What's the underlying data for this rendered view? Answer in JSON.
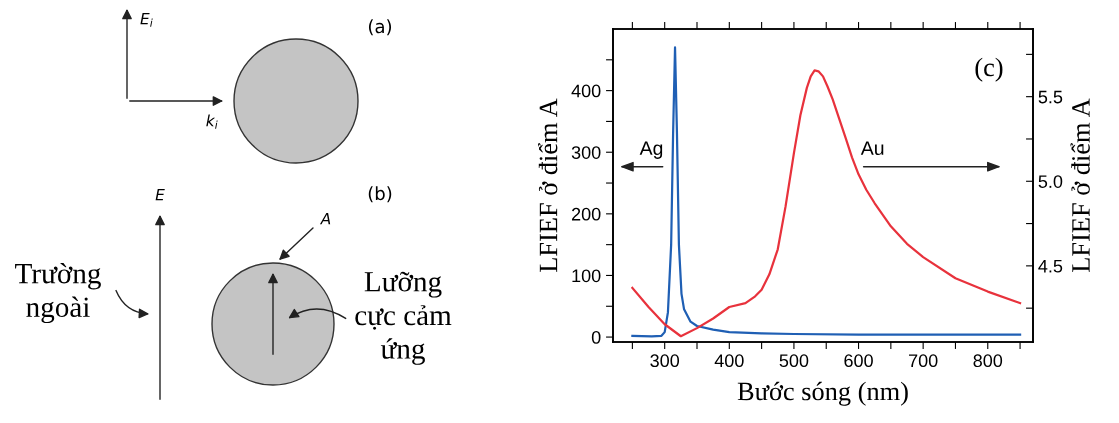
{
  "chart_data": [
    {
      "type": "other",
      "annotations": [
        "E$_{i}$",
        "k$_{i}$",
        "(a)",
        "(b)",
        "E",
        "A",
        "Trường\nngoài",
        "Lưỡng\ncực cảm\nứng"
      ]
    },
    {
      "type": "line",
      "xlabel": "Bước sóng (nm)",
      "ylabel": "LFIEF ở điểm A",
      "y2label": "LFIEF ở điểm A",
      "annotations": [
        "(c)",
        "Ag",
        "Au"
      ],
      "xlim": [
        220,
        870
      ],
      "xticks": [
        {
          "value": 250,
          "label": null
        },
        300,
        {
          "value": 350,
          "label": null
        },
        400,
        {
          "value": 450,
          "label": null
        },
        500,
        {
          "value": 550,
          "label": null
        },
        600,
        {
          "value": 650,
          "label": null
        },
        700,
        {
          "value": 750,
          "label": null
        },
        800,
        {
          "value": 850,
          "label": null
        }
      ],
      "ylim": [
        -8,
        500
      ],
      "yticks": [
        0,
        {
          "value": 50,
          "label": null
        },
        100,
        {
          "value": 150,
          "label": null
        },
        200,
        {
          "value": 250,
          "label": null
        },
        300,
        {
          "value": 350,
          "label": null
        },
        400,
        {
          "value": 450,
          "label": null
        }
      ],
      "y2lim": [
        4.05,
        5.9
      ],
      "y2ticks": [
        {
          "value": 4.25,
          "label": null
        },
        {
          "value": 4.5,
          "label": "4.5"
        },
        {
          "value": 4.75,
          "label": null
        },
        {
          "value": 5.0,
          "label": "5.0"
        },
        {
          "value": 5.25,
          "label": null
        },
        {
          "value": 5.5,
          "label": "5.5"
        },
        {
          "value": 5.75,
          "label": null
        }
      ],
      "grid": false,
      "series": [
        {
          "color": "#1f5fb4",
          "x": [
            250,
            280,
            295,
            300,
            305,
            310,
            313,
            316,
            319,
            322,
            326,
            330,
            340,
            350,
            375,
            400,
            450,
            500,
            600,
            700,
            850
          ],
          "values": [
            2,
            1,
            2,
            8,
            40,
            150,
            330,
            470,
            330,
            150,
            70,
            45,
            25,
            18,
            12,
            8,
            6,
            5,
            4,
            4,
            4
          ]
        },
        {
          "color": "#e8323c",
          "axis": "y2",
          "x": [
            250,
            275,
            300,
            325,
            350,
            375,
            400,
            425,
            440,
            450,
            462,
            475,
            487,
            500,
            510,
            520,
            526,
            532,
            538,
            545,
            552,
            560,
            570,
            580,
            590,
            600,
            612,
            625,
            650,
            675,
            700,
            750,
            800,
            850
          ],
          "values": [
            4.37,
            4.257,
            4.155,
            4.084,
            4.132,
            4.189,
            4.257,
            4.28,
            4.32,
            4.359,
            4.45,
            4.598,
            4.85,
            5.166,
            5.39,
            5.552,
            5.62,
            5.655,
            5.65,
            5.62,
            5.56,
            5.484,
            5.37,
            5.257,
            5.14,
            5.041,
            4.95,
            4.87,
            4.734,
            4.63,
            4.552,
            4.427,
            4.348,
            4.28
          ]
        }
      ]
    }
  ]
}
